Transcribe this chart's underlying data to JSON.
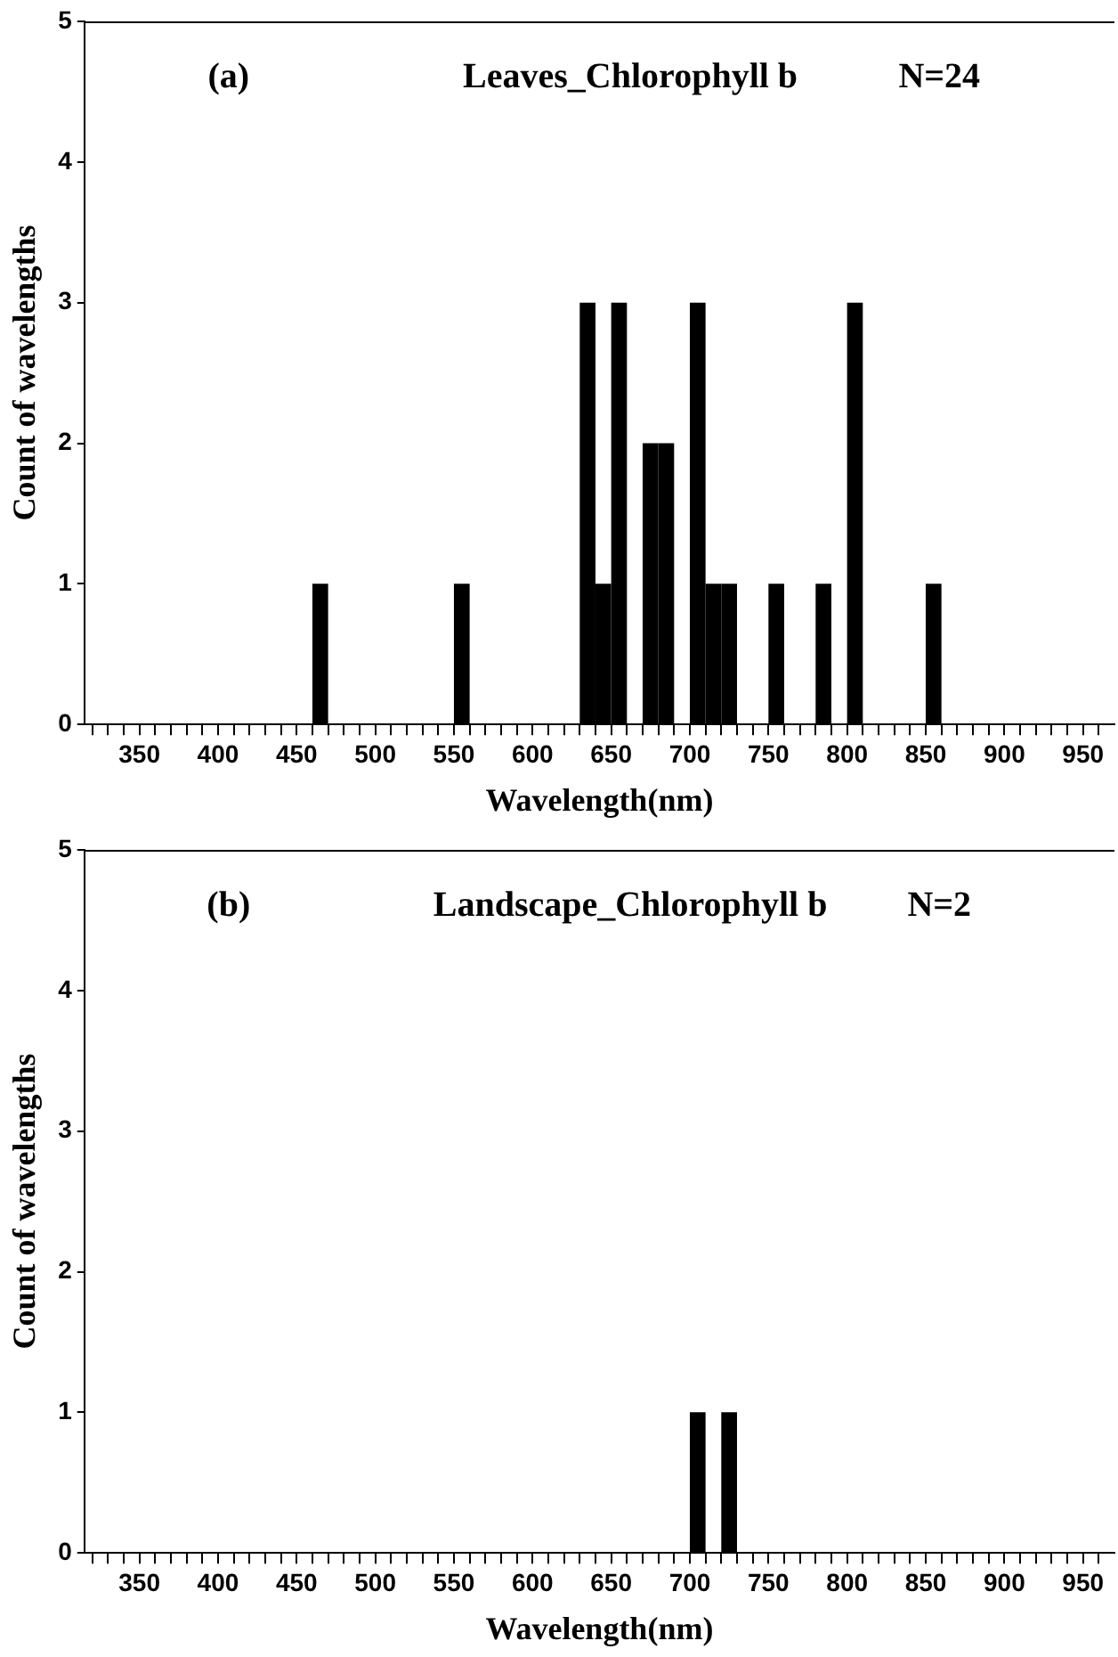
{
  "chart_data": [
    {
      "type": "histogram",
      "title": "Leaves_Chlorophyll b",
      "annotations": [
        "(a)",
        "N=24"
      ],
      "xlabel": "Wavelength(nm)",
      "ylabel": "Count of wavelengths",
      "color": "#000000",
      "bins": [
        460,
        470,
        480,
        490,
        500,
        510,
        520,
        530,
        540,
        550,
        560,
        570,
        580,
        590,
        600,
        610,
        620,
        630,
        640,
        650,
        660,
        670,
        680,
        690,
        700,
        710,
        720,
        730,
        740,
        750,
        760,
        770,
        780,
        790,
        800,
        810,
        820,
        830,
        840,
        850,
        860
      ],
      "values": [
        1,
        0,
        0,
        0,
        0,
        0,
        0,
        0,
        0,
        1,
        0,
        0,
        0,
        0,
        0,
        0,
        0,
        3,
        1,
        3,
        0,
        2,
        2,
        0,
        3,
        1,
        1,
        0,
        0,
        1,
        0,
        0,
        1,
        0,
        3,
        0,
        0,
        0,
        0,
        1
      ],
      "xlim": [
        315,
        970
      ],
      "xticks": [
        {
          "value": 320,
          "label": null
        },
        {
          "value": 330,
          "label": null
        },
        {
          "value": 340,
          "label": null
        },
        350,
        {
          "value": 360,
          "label": null
        },
        {
          "value": 370,
          "label": null
        },
        {
          "value": 380,
          "label": null
        },
        {
          "value": 390,
          "label": null
        },
        400,
        {
          "value": 410,
          "label": null
        },
        {
          "value": 420,
          "label": null
        },
        {
          "value": 430,
          "label": null
        },
        {
          "value": 440,
          "label": null
        },
        450,
        {
          "value": 460,
          "label": null
        },
        {
          "value": 470,
          "label": null
        },
        {
          "value": 480,
          "label": null
        },
        {
          "value": 490,
          "label": null
        },
        500,
        {
          "value": 510,
          "label": null
        },
        {
          "value": 520,
          "label": null
        },
        {
          "value": 530,
          "label": null
        },
        {
          "value": 540,
          "label": null
        },
        550,
        {
          "value": 560,
          "label": null
        },
        {
          "value": 570,
          "label": null
        },
        {
          "value": 580,
          "label": null
        },
        {
          "value": 590,
          "label": null
        },
        600,
        {
          "value": 610,
          "label": null
        },
        {
          "value": 620,
          "label": null
        },
        {
          "value": 630,
          "label": null
        },
        {
          "value": 640,
          "label": null
        },
        650,
        {
          "value": 660,
          "label": null
        },
        {
          "value": 670,
          "label": null
        },
        {
          "value": 680,
          "label": null
        },
        {
          "value": 690,
          "label": null
        },
        700,
        {
          "value": 710,
          "label": null
        },
        {
          "value": 720,
          "label": null
        },
        {
          "value": 730,
          "label": null
        },
        {
          "value": 740,
          "label": null
        },
        750,
        {
          "value": 760,
          "label": null
        },
        {
          "value": 770,
          "label": null
        },
        {
          "value": 780,
          "label": null
        },
        {
          "value": 790,
          "label": null
        },
        800,
        {
          "value": 810,
          "label": null
        },
        {
          "value": 820,
          "label": null
        },
        {
          "value": 830,
          "label": null
        },
        {
          "value": 840,
          "label": null
        },
        850,
        {
          "value": 860,
          "label": null
        },
        {
          "value": 870,
          "label": null
        },
        {
          "value": 880,
          "label": null
        },
        {
          "value": 890,
          "label": null
        },
        900,
        {
          "value": 910,
          "label": null
        },
        {
          "value": 920,
          "label": null
        },
        {
          "value": 930,
          "label": null
        },
        {
          "value": 940,
          "label": null
        },
        950,
        {
          "value": 960,
          "label": null
        }
      ],
      "ylim": [
        0,
        5
      ],
      "yticks": [
        0,
        1,
        2,
        3,
        4,
        5
      ],
      "grid": false,
      "legend": false
    },
    {
      "type": "histogram",
      "title": "Landscape_Chlorophyll b",
      "annotations": [
        "(b)",
        "N=2"
      ],
      "xlabel": "Wavelength(nm)",
      "ylabel": "Count of wavelengths",
      "color": "#000000",
      "bins": [
        700,
        710,
        720,
        730
      ],
      "values": [
        1,
        0,
        1
      ],
      "xlim": [
        315,
        970
      ],
      "xticks": [
        {
          "value": 320,
          "label": null
        },
        {
          "value": 330,
          "label": null
        },
        {
          "value": 340,
          "label": null
        },
        350,
        {
          "value": 360,
          "label": null
        },
        {
          "value": 370,
          "label": null
        },
        {
          "value": 380,
          "label": null
        },
        {
          "value": 390,
          "label": null
        },
        400,
        {
          "value": 410,
          "label": null
        },
        {
          "value": 420,
          "label": null
        },
        {
          "value": 430,
          "label": null
        },
        {
          "value": 440,
          "label": null
        },
        450,
        {
          "value": 460,
          "label": null
        },
        {
          "value": 470,
          "label": null
        },
        {
          "value": 480,
          "label": null
        },
        {
          "value": 490,
          "label": null
        },
        500,
        {
          "value": 510,
          "label": null
        },
        {
          "value": 520,
          "label": null
        },
        {
          "value": 530,
          "label": null
        },
        {
          "value": 540,
          "label": null
        },
        550,
        {
          "value": 560,
          "label": null
        },
        {
          "value": 570,
          "label": null
        },
        {
          "value": 580,
          "label": null
        },
        {
          "value": 590,
          "label": null
        },
        600,
        {
          "value": 610,
          "label": null
        },
        {
          "value": 620,
          "label": null
        },
        {
          "value": 630,
          "label": null
        },
        {
          "value": 640,
          "label": null
        },
        650,
        {
          "value": 660,
          "label": null
        },
        {
          "value": 670,
          "label": null
        },
        {
          "value": 680,
          "label": null
        },
        {
          "value": 690,
          "label": null
        },
        700,
        {
          "value": 710,
          "label": null
        },
        {
          "value": 720,
          "label": null
        },
        {
          "value": 730,
          "label": null
        },
        {
          "value": 740,
          "label": null
        },
        750,
        {
          "value": 760,
          "label": null
        },
        {
          "value": 770,
          "label": null
        },
        {
          "value": 780,
          "label": null
        },
        {
          "value": 790,
          "label": null
        },
        800,
        {
          "value": 810,
          "label": null
        },
        {
          "value": 820,
          "label": null
        },
        {
          "value": 830,
          "label": null
        },
        {
          "value": 840,
          "label": null
        },
        850,
        {
          "value": 860,
          "label": null
        },
        {
          "value": 870,
          "label": null
        },
        {
          "value": 880,
          "label": null
        },
        {
          "value": 890,
          "label": null
        },
        900,
        {
          "value": 910,
          "label": null
        },
        {
          "value": 920,
          "label": null
        },
        {
          "value": 930,
          "label": null
        },
        {
          "value": 940,
          "label": null
        },
        950,
        {
          "value": 960,
          "label": null
        }
      ],
      "ylim": [
        0,
        5
      ],
      "yticks": [
        0,
        1,
        2,
        3,
        4,
        5
      ],
      "grid": false,
      "legend": false
    }
  ]
}
